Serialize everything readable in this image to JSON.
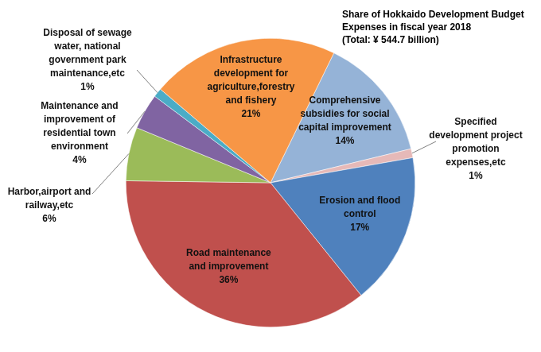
{
  "chart_data": {
    "type": "pie",
    "title": "Share of Hokkaido Development Budget Expenses in fiscal year 2018",
    "subtitle": "(Total: ¥ 544.7 billion)",
    "categories": [
      "Comprehensive subsidies for social capital improvement",
      "Specified development project promotion expenses,etc",
      "Erosion and flood control",
      "Road maintenance and improvement",
      "Harbor,airport and railway,etc",
      "Maintenance and improvement of residential town environment",
      "Disposal of sewage water, national government park maintenance,etc",
      "Infrastructure development for agriculture,forestry and fishery"
    ],
    "values": [
      14,
      1,
      17,
      36,
      6,
      4,
      1,
      21
    ],
    "value_labels": [
      "14%",
      "1%",
      "17%",
      "36%",
      "6%",
      "4%",
      "1%",
      "21%"
    ],
    "colors": [
      "#95b3d7",
      "#e6b9b8",
      "#4f81bd",
      "#c0504d",
      "#9bbb59",
      "#8064a2",
      "#4bacc6",
      "#f79646"
    ],
    "data_labels": true,
    "legend": null
  }
}
